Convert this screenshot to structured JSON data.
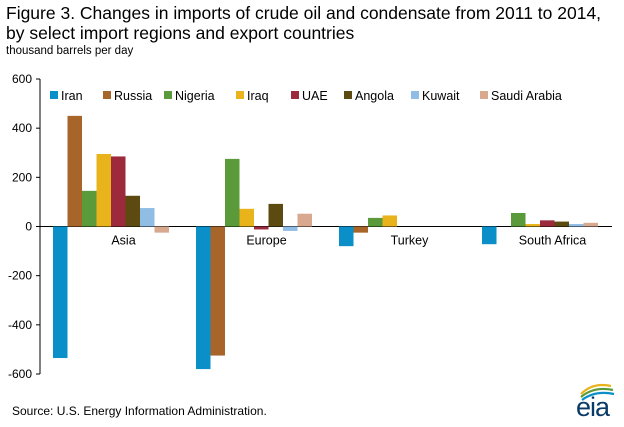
{
  "title": "Figure 3. Changes in imports of crude oil and condensate from 2011 to 2014, by select import regions and export countries",
  "subtitle": "thousand barrels per day",
  "source": "Source: U.S. Energy Information  Administration.",
  "logo_text": "eia",
  "chart_data": {
    "type": "bar",
    "categories": [
      "Asia",
      "Europe",
      "Turkey",
      "South Africa"
    ],
    "series": [
      {
        "name": "Iran",
        "color": "#0a8fc9",
        "values": [
          -535,
          -580,
          -80,
          -72
        ]
      },
      {
        "name": "Russia",
        "color": "#a8652a",
        "values": [
          450,
          -525,
          -25,
          0
        ]
      },
      {
        "name": "Nigeria",
        "color": "#5a9a3a",
        "values": [
          145,
          275,
          35,
          55
        ]
      },
      {
        "name": "Iraq",
        "color": "#e9b31c",
        "values": [
          295,
          72,
          45,
          10
        ]
      },
      {
        "name": "UAE",
        "color": "#9c2a3c",
        "values": [
          285,
          -12,
          0,
          25
        ]
      },
      {
        "name": "Angola",
        "color": "#5c4a10",
        "values": [
          125,
          92,
          0,
          20
        ]
      },
      {
        "name": "Kuwait",
        "color": "#8fbde3",
        "values": [
          75,
          -18,
          0,
          10
        ]
      },
      {
        "name": "Saudi Arabia",
        "color": "#d8a98f",
        "values": [
          -25,
          52,
          0,
          15
        ]
      }
    ],
    "ylim": [
      -600,
      600
    ],
    "yticks": [
      600,
      400,
      200,
      0,
      -200,
      -400,
      -600
    ],
    "ytick_labels": [
      "600",
      "400",
      "200",
      "0",
      "-200",
      "-400",
      "-600"
    ],
    "grid": false,
    "legend": "top"
  }
}
